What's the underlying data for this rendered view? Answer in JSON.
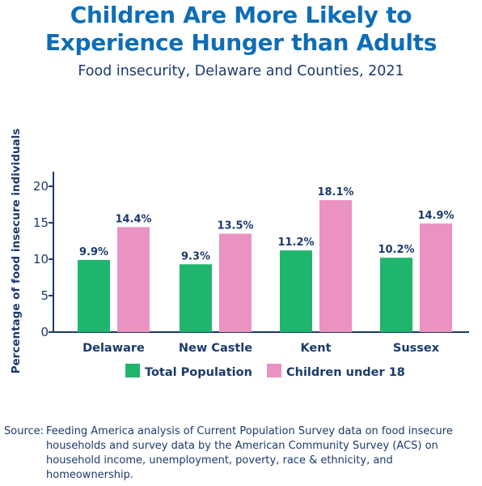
{
  "title_line1": "Children Are More Likely to",
  "title_line2": "Experience Hunger than Adults",
  "subtitle": "Food insecurity, Delaware and Counties, 2021",
  "source_label": "Source:",
  "source_text": "Feeding America analysis of Current Population Survey data on food insecure households and survey data by the American Community Survey (ACS) on household income, unemployment, poverty, race & ethnicity, and homeownership.",
  "colors": {
    "title": "#0f6db5",
    "text": "#1b3a6b",
    "total": "#1fb56d",
    "children": "#ea92c2"
  },
  "chart_data": {
    "type": "bar",
    "categories": [
      "Delaware",
      "New Castle",
      "Kent",
      "Sussex"
    ],
    "series": [
      {
        "name": "Total Population",
        "values": [
          9.9,
          9.3,
          11.2,
          10.2
        ],
        "labels": [
          "9.9%",
          "9.3%",
          "11.2%",
          "10.2%"
        ]
      },
      {
        "name": "Children under 18",
        "values": [
          14.4,
          13.5,
          18.1,
          14.9
        ],
        "labels": [
          "14.4%",
          "13.5%",
          "18.1%",
          "14.9%"
        ]
      }
    ],
    "ylabel": "Percentage of food insecure individuals",
    "ylim": [
      0,
      20
    ],
    "yticks": [
      0,
      5,
      10,
      15,
      20
    ],
    "legend_position": "bottom",
    "grid": false
  }
}
